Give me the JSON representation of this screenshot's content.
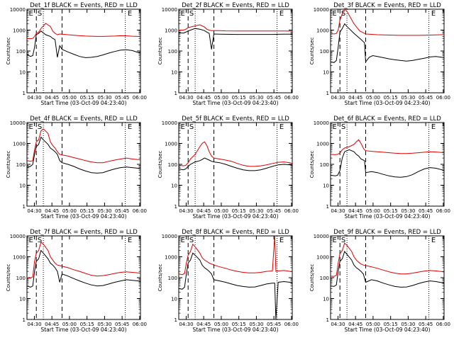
{
  "figure": {
    "subtitle": "Start Time (03-Oct-09 04:23:40)",
    "ylabel": "Counts/sec",
    "xticks": [
      "04:30",
      "04:45",
      "05:00",
      "05:15",
      "05:30",
      "05:45",
      "06:00"
    ],
    "yticks": [
      "1",
      "10",
      "100",
      "1000",
      "10000"
    ]
  },
  "colors": {
    "events": "#000000",
    "lld": "#dd0000"
  },
  "chart_data": [
    {
      "type": "line",
      "title": "Det_1f BLACK = Events, RED = LLD",
      "markers": [
        "E",
        "S",
        "E"
      ],
      "xlabel": "Start Time (03-Oct-09 04:23:40)",
      "ylabel": "Counts/sec",
      "yscale": "log",
      "ylim": [
        1,
        10000
      ],
      "x_minutes_after_0423": [
        0,
        3,
        5,
        6.5,
        8,
        10,
        12,
        16,
        20,
        22,
        24,
        26,
        28,
        30,
        35,
        40,
        45,
        50,
        55,
        60,
        65,
        70,
        75,
        80,
        85,
        90,
        95,
        97
      ],
      "series": [
        {
          "name": "Events",
          "values": [
            70,
            55,
            60,
            150,
            600,
            700,
            900,
            600,
            500,
            400,
            350,
            50,
            180,
            120,
            90,
            70,
            55,
            48,
            50,
            55,
            65,
            80,
            95,
            110,
            115,
            105,
            85,
            80
          ]
        },
        {
          "name": "LLD",
          "values": [
            400,
            390,
            400,
            500,
            700,
            800,
            1200,
            2100,
            1500,
            900,
            700,
            600,
            650,
            640,
            600,
            570,
            540,
            520,
            510,
            500,
            500,
            510,
            520,
            540,
            530,
            510,
            500,
            480
          ]
        }
      ],
      "lines_dashed_x": [
        8,
        30
      ],
      "lines_dotted_x": [
        14,
        84
      ]
    },
    {
      "type": "line",
      "title": "Det_2f BLACK = Events, RED = LLD",
      "markers": [
        "E",
        "S",
        "E"
      ],
      "xlabel": "Start Time (03-Oct-09 04:23:40)",
      "ylabel": "Counts/sec",
      "yscale": "log",
      "ylim": [
        1,
        10000
      ],
      "x_minutes_after_0423": [
        0,
        4,
        6,
        8,
        10,
        14,
        18,
        22,
        24,
        26,
        28,
        30,
        35,
        40,
        50,
        60,
        70,
        80,
        85,
        90,
        97
      ],
      "series": [
        {
          "name": "Events",
          "values": [
            750,
            720,
            800,
            900,
            1000,
            1200,
            1100,
            950,
            800,
            700,
            120,
            650,
            640,
            630,
            620,
            620,
            620,
            620,
            630,
            640,
            640
          ]
        },
        {
          "name": "LLD",
          "values": [
            1000,
            1000,
            1100,
            1300,
            1400,
            1600,
            1800,
            1400,
            1100,
            1000,
            950,
            950,
            940,
            920,
            900,
            900,
            900,
            900,
            900,
            900,
            890
          ]
        }
      ],
      "lines_dashed_x": [
        8,
        30
      ],
      "lines_dotted_x": [
        14,
        84
      ]
    },
    {
      "type": "line",
      "title": "Det_3f BLACK = Events, RED = LLD",
      "markers": [
        "E",
        "S",
        "E"
      ],
      "xlabel": "Start Time (03-Oct-09 04:23:40)",
      "ylabel": "Counts/sec",
      "yscale": "log",
      "ylim": [
        1,
        10000
      ],
      "x_minutes_after_0423": [
        0,
        3,
        5,
        6.5,
        8,
        10,
        12,
        14,
        20,
        25,
        29,
        30,
        33,
        36,
        40,
        45,
        50,
        55,
        60,
        65,
        70,
        75,
        80,
        85,
        90,
        95,
        97
      ],
      "series": [
        {
          "name": "Events",
          "values": [
            30,
            28,
            35,
            150,
            800,
            1200,
            2000,
            1500,
            700,
            400,
            250,
            30,
            50,
            60,
            55,
            48,
            42,
            38,
            35,
            33,
            35,
            40,
            45,
            52,
            55,
            50,
            48
          ]
        },
        {
          "name": "LLD",
          "values": [
            700,
            650,
            700,
            1000,
            3000,
            6000,
            10000,
            8000,
            2000,
            900,
            700,
            650,
            640,
            620,
            600,
            590,
            580,
            570,
            560,
            560,
            560,
            560,
            570,
            580,
            590,
            600,
            600
          ]
        }
      ],
      "lines_dashed_x": [
        8,
        30
      ],
      "lines_dotted_x": [
        14,
        84
      ]
    },
    {
      "type": "line",
      "title": "Det_4f BLACK = Events, RED = LLD",
      "markers": [
        "E",
        "S",
        "E"
      ],
      "xlabel": "Start Time (03-Oct-09 04:23:40)",
      "ylabel": "Counts/sec",
      "yscale": "log",
      "ylim": [
        1,
        10000
      ],
      "x_minutes_after_0423": [
        0,
        3,
        5,
        6.5,
        8,
        10,
        12,
        14,
        18,
        20,
        22,
        24,
        26,
        28,
        30,
        35,
        40,
        45,
        50,
        55,
        60,
        65,
        70,
        75,
        80,
        85,
        90,
        95,
        97
      ],
      "series": [
        {
          "name": "Events",
          "values": [
            70,
            80,
            100,
            300,
            700,
            900,
            2000,
            1500,
            900,
            600,
            500,
            400,
            300,
            150,
            120,
            100,
            80,
            60,
            48,
            40,
            38,
            40,
            50,
            60,
            70,
            75,
            70,
            65,
            60
          ]
        },
        {
          "name": "LLD",
          "values": [
            150,
            140,
            150,
            500,
            1200,
            1500,
            4000,
            5000,
            3000,
            1200,
            800,
            600,
            400,
            300,
            280,
            250,
            210,
            180,
            150,
            130,
            120,
            120,
            140,
            160,
            180,
            200,
            180,
            170,
            160
          ]
        }
      ],
      "lines_dashed_x": [
        8,
        30
      ],
      "lines_dotted_x": [
        14,
        84
      ]
    },
    {
      "type": "line",
      "title": "Det_5f BLACK = Events, RED = LLD",
      "markers": [
        "E",
        "S",
        "E"
      ],
      "xlabel": "Start Time (03-Oct-09 04:23:40)",
      "ylabel": "Counts/sec",
      "yscale": "log",
      "ylim": [
        1,
        10000
      ],
      "x_minutes_after_0423": [
        0,
        4,
        6,
        8,
        10,
        14,
        18,
        20,
        22,
        24,
        26,
        28,
        30,
        35,
        40,
        45,
        50,
        55,
        60,
        65,
        70,
        75,
        80,
        85,
        90,
        95,
        97
      ],
      "series": [
        {
          "name": "Events",
          "values": [
            60,
            55,
            60,
            80,
            100,
            130,
            150,
            170,
            200,
            180,
            160,
            140,
            130,
            120,
            100,
            80,
            65,
            55,
            50,
            50,
            55,
            65,
            80,
            95,
            100,
            95,
            90
          ]
        },
        {
          "name": "LLD",
          "values": [
            90,
            85,
            90,
            120,
            180,
            300,
            700,
            1000,
            1200,
            800,
            400,
            250,
            200,
            180,
            160,
            140,
            110,
            90,
            80,
            80,
            85,
            95,
            110,
            125,
            130,
            120,
            110
          ]
        }
      ],
      "lines_dashed_x": [
        8,
        30
      ],
      "lines_dotted_x": [
        14,
        84
      ]
    },
    {
      "type": "line",
      "title": "Det_6f BLACK = Events, RED = LLD",
      "markers": [
        "E",
        "S",
        "E"
      ],
      "xlabel": "Start Time (03-Oct-09 04:23:40)",
      "ylabel": "Counts/sec",
      "yscale": "log",
      "ylim": [
        1,
        10000
      ],
      "x_minutes_after_0423": [
        0,
        4,
        6,
        8,
        10,
        12,
        16,
        20,
        22,
        24,
        26,
        28,
        29,
        30,
        35,
        40,
        45,
        50,
        55,
        60,
        65,
        70,
        75,
        80,
        85,
        90,
        95,
        97
      ],
      "series": [
        {
          "name": "Events",
          "values": [
            30,
            28,
            30,
            50,
            200,
            400,
            500,
            400,
            300,
            250,
            180,
            160,
            150,
            40,
            45,
            40,
            33,
            28,
            25,
            24,
            26,
            32,
            45,
            60,
            70,
            65,
            55,
            50
          ]
        },
        {
          "name": "LLD",
          "values": [
            300,
            290,
            300,
            350,
            500,
            600,
            700,
            900,
            1200,
            1500,
            1000,
            600,
            500,
            450,
            420,
            400,
            380,
            360,
            340,
            330,
            330,
            340,
            360,
            380,
            400,
            390,
            370,
            360
          ]
        }
      ],
      "lines_dashed_x": [
        8,
        30
      ],
      "lines_dotted_x": [
        14,
        84
      ]
    },
    {
      "type": "line",
      "title": "Det_7f BLACK = Events, RED = LLD",
      "markers": [
        "E",
        "S",
        "E"
      ],
      "xlabel": "Start Time (03-Oct-09 04:23:40)",
      "ylabel": "Counts/sec",
      "yscale": "log",
      "ylim": [
        1,
        10000
      ],
      "x_minutes_after_0423": [
        0,
        3,
        5,
        6.5,
        8,
        10,
        12,
        14,
        18,
        20,
        22,
        24,
        26,
        28,
        30,
        35,
        40,
        45,
        50,
        55,
        60,
        65,
        70,
        75,
        80,
        85,
        90,
        95,
        97
      ],
      "series": [
        {
          "name": "Events",
          "values": [
            40,
            35,
            40,
            200,
            600,
            800,
            2000,
            1500,
            800,
            500,
            400,
            300,
            200,
            60,
            150,
            120,
            90,
            70,
            55,
            45,
            40,
            42,
            50,
            60,
            70,
            80,
            75,
            70,
            65
          ]
        },
        {
          "name": "LLD",
          "values": [
            100,
            95,
            110,
            600,
            1500,
            2000,
            5000,
            4000,
            2000,
            1000,
            700,
            500,
            400,
            380,
            350,
            300,
            240,
            200,
            160,
            130,
            120,
            125,
            140,
            160,
            180,
            190,
            180,
            170,
            160
          ]
        }
      ],
      "lines_dashed_x": [
        8,
        30
      ],
      "lines_dotted_x": [
        14,
        84
      ]
    },
    {
      "type": "line",
      "title": "Det_8f BLACK = Events, RED = LLD",
      "markers": [
        "E",
        "S",
        "E"
      ],
      "xlabel": "Start Time (03-Oct-09 04:23:40)",
      "ylabel": "Counts/sec",
      "yscale": "log",
      "ylim": [
        1,
        10000
      ],
      "x_minutes_after_0423": [
        0,
        3,
        5,
        6.5,
        8,
        10,
        12,
        14,
        18,
        20,
        22,
        24,
        26,
        28,
        30,
        35,
        40,
        45,
        50,
        55,
        60,
        65,
        70,
        75,
        80,
        82,
        83,
        85,
        90,
        95,
        97
      ],
      "series": [
        {
          "name": "Events",
          "values": [
            30,
            28,
            35,
            150,
            500,
            700,
            1500,
            1200,
            700,
            400,
            300,
            250,
            200,
            150,
            80,
            70,
            60,
            50,
            42,
            38,
            35,
            36,
            42,
            50,
            55,
            55,
            1,
            60,
            65,
            60,
            55
          ]
        },
        {
          "name": "LLD",
          "values": [
            150,
            140,
            160,
            500,
            1200,
            1800,
            4000,
            3000,
            1500,
            900,
            700,
            600,
            500,
            450,
            400,
            330,
            280,
            230,
            200,
            180,
            170,
            170,
            180,
            200,
            210,
            10000,
            200,
            210,
            220,
            200,
            190
          ]
        }
      ],
      "lines_dashed_x": [
        8,
        30
      ],
      "lines_dotted_x": [
        14,
        84
      ]
    },
    {
      "type": "line",
      "title": "Det_9f BLACK = Events, RED = LLD",
      "markers": [
        "E",
        "S",
        "E"
      ],
      "xlabel": "Start Time (03-Oct-09 04:23:40)",
      "ylabel": "Counts/sec",
      "yscale": "log",
      "ylim": [
        1,
        10000
      ],
      "x_minutes_after_0423": [
        0,
        3,
        5,
        6.5,
        8,
        10,
        12,
        14,
        18,
        20,
        22,
        24,
        26,
        28,
        30,
        35,
        40,
        45,
        50,
        55,
        60,
        65,
        70,
        75,
        80,
        85,
        90,
        95,
        97
      ],
      "series": [
        {
          "name": "Events",
          "values": [
            40,
            38,
            45,
            200,
            600,
            800,
            1800,
            1300,
            700,
            400,
            300,
            250,
            200,
            150,
            60,
            80,
            70,
            55,
            45,
            38,
            35,
            36,
            42,
            52,
            62,
            70,
            65,
            58,
            55
          ]
        },
        {
          "name": "LLD",
          "values": [
            120,
            115,
            130,
            500,
            1400,
            2000,
            4500,
            3500,
            1800,
            1000,
            700,
            550,
            450,
            400,
            380,
            330,
            280,
            230,
            190,
            165,
            150,
            150,
            165,
            185,
            205,
            220,
            210,
            195,
            185
          ]
        }
      ],
      "lines_dashed_x": [
        8,
        30
      ],
      "lines_dotted_x": [
        14,
        84
      ]
    }
  ]
}
